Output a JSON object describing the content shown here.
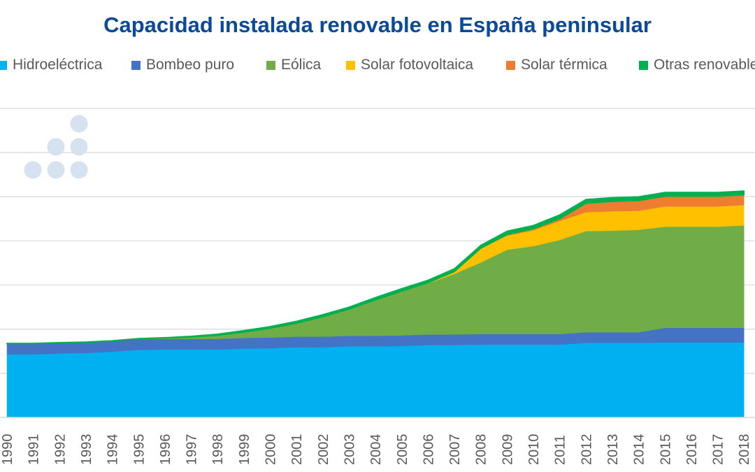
{
  "chart_data": {
    "type": "area",
    "stacked": true,
    "title": "Capacidad instalada renovable en España peninsular",
    "xlabel": "",
    "ylabel": "",
    "ylim": [
      0,
      70000
    ],
    "grid": true,
    "legend_placement": "top",
    "categories": [
      "1990",
      "1991",
      "1992",
      "1993",
      "1994",
      "1995",
      "1996",
      "1997",
      "1998",
      "1999",
      "2000",
      "2001",
      "2002",
      "2003",
      "2004",
      "2005",
      "2006",
      "2007",
      "2008",
      "2009",
      "2010",
      "2011",
      "2012",
      "2013",
      "2014",
      "2015",
      "2016",
      "2017",
      "2018"
    ],
    "series": [
      {
        "name": "Hidroeléctrica",
        "color": "#00b0f0",
        "values": [
          14300,
          14300,
          14500,
          14600,
          14900,
          15300,
          15400,
          15400,
          15400,
          15600,
          15700,
          15900,
          15900,
          16100,
          16100,
          16200,
          16400,
          16400,
          16500,
          16500,
          16500,
          16500,
          16900,
          16900,
          16900,
          17000,
          17000,
          17000,
          17000
        ]
      },
      {
        "name": "Bombeo puro",
        "color": "#4472c4",
        "values": [
          2400,
          2400,
          2400,
          2400,
          2400,
          2400,
          2400,
          2400,
          2400,
          2400,
          2400,
          2400,
          2400,
          2400,
          2400,
          2400,
          2400,
          2400,
          2400,
          2400,
          2400,
          2400,
          2400,
          2400,
          2400,
          3300,
          3300,
          3300,
          3300
        ]
      },
      {
        "name": "Eólica",
        "color": "#70ad47",
        "values": [
          0,
          0,
          0,
          0,
          0,
          100,
          200,
          400,
          800,
          1300,
          2100,
          3000,
          4500,
          6000,
          8100,
          10000,
          11600,
          13700,
          16200,
          19100,
          19900,
          21300,
          22900,
          23000,
          23200,
          22900,
          22900,
          22900,
          23200
        ]
      },
      {
        "name": "Solar fotovoltaica",
        "color": "#ffc000",
        "values": [
          0,
          0,
          0,
          0,
          0,
          0,
          0,
          0,
          0,
          0,
          0,
          0,
          0,
          0,
          0,
          0,
          100,
          500,
          3200,
          3200,
          3600,
          4300,
          4300,
          4400,
          4300,
          4600,
          4600,
          4600,
          4600
        ]
      },
      {
        "name": "Solar térmica",
        "color": "#ed7d31",
        "values": [
          0,
          0,
          0,
          0,
          0,
          0,
          0,
          0,
          0,
          0,
          0,
          0,
          0,
          0,
          0,
          0,
          0,
          0,
          0,
          200,
          300,
          500,
          2000,
          2200,
          2300,
          2300,
          2300,
          2300,
          2300
        ]
      },
      {
        "name": "Otras renovables",
        "color": "#00b050",
        "values": [
          100,
          100,
          100,
          100,
          100,
          100,
          100,
          200,
          300,
          400,
          400,
          500,
          500,
          500,
          600,
          600,
          600,
          700,
          700,
          800,
          800,
          900,
          900,
          900,
          900,
          900,
          900,
          900,
          900
        ]
      }
    ]
  },
  "logo": {
    "icon": "dots-logo-icon",
    "color": "#d6e2f0"
  }
}
